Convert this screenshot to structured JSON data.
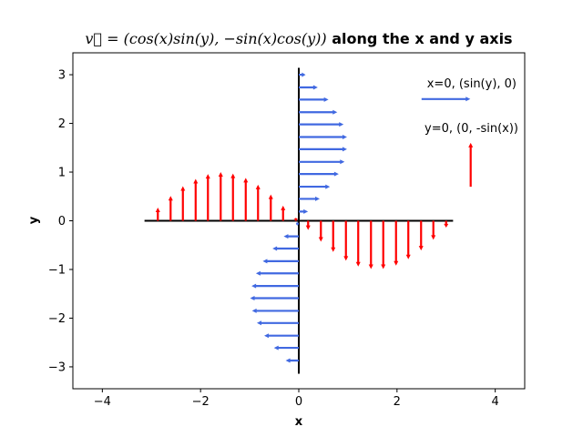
{
  "chart_data": {
    "type": "quiver",
    "title": {
      "math": "v⃗ = (cos(x)sin(y), −sin(x)cos(y))",
      "text": " along the x and y axis"
    },
    "xlabel": "x",
    "ylabel": "y",
    "xlim": [
      -4.6,
      4.6
    ],
    "ylim": [
      -3.45,
      3.45
    ],
    "xticks": [
      -4,
      -2,
      0,
      2,
      4
    ],
    "yticks": [
      -3,
      -2,
      -1,
      0,
      1,
      2,
      3
    ],
    "grid": false,
    "axis_lines": {
      "x": [
        -3.14159,
        3.14159
      ],
      "y": [
        -3.14159,
        3.14159
      ]
    },
    "series": [
      {
        "name": "x=0, (sin(y), 0)",
        "color": "#4169e1",
        "along": "y",
        "points": [
          {
            "y": -2.87,
            "u": -0.27
          },
          {
            "y": -2.61,
            "u": -0.51
          },
          {
            "y": -2.36,
            "u": -0.71
          },
          {
            "y": -2.1,
            "u": -0.86
          },
          {
            "y": -1.85,
            "u": -0.96
          },
          {
            "y": -1.59,
            "u": -1.0
          },
          {
            "y": -1.34,
            "u": -0.97
          },
          {
            "y": -1.08,
            "u": -0.88
          },
          {
            "y": -0.83,
            "u": -0.74
          },
          {
            "y": -0.57,
            "u": -0.54
          },
          {
            "y": -0.32,
            "u": -0.31
          },
          {
            "y": -0.06,
            "u": -0.06
          },
          {
            "y": 0.19,
            "u": 0.19
          },
          {
            "y": 0.45,
            "u": 0.43
          },
          {
            "y": 0.7,
            "u": 0.64
          },
          {
            "y": 0.96,
            "u": 0.82
          },
          {
            "y": 1.21,
            "u": 0.94
          },
          {
            "y": 1.47,
            "u": 0.99
          },
          {
            "y": 1.72,
            "u": 0.99
          },
          {
            "y": 1.98,
            "u": 0.92
          },
          {
            "y": 2.23,
            "u": 0.79
          },
          {
            "y": 2.49,
            "u": 0.61
          },
          {
            "y": 2.74,
            "u": 0.39
          },
          {
            "y": 3.0,
            "u": 0.14
          }
        ]
      },
      {
        "name": "y=0, (0, -sin(x))",
        "color": "#ff0000",
        "along": "x",
        "points": [
          {
            "x": -2.87,
            "v": 0.27
          },
          {
            "x": -2.61,
            "v": 0.51
          },
          {
            "x": -2.36,
            "v": 0.71
          },
          {
            "x": -2.1,
            "v": 0.86
          },
          {
            "x": -1.85,
            "v": 0.96
          },
          {
            "x": -1.59,
            "v": 1.0
          },
          {
            "x": -1.34,
            "v": 0.97
          },
          {
            "x": -1.08,
            "v": 0.88
          },
          {
            "x": -0.83,
            "v": 0.74
          },
          {
            "x": -0.57,
            "v": 0.54
          },
          {
            "x": -0.32,
            "v": 0.31
          },
          {
            "x": -0.06,
            "v": 0.06
          },
          {
            "x": 0.19,
            "v": -0.19
          },
          {
            "x": 0.45,
            "v": -0.43
          },
          {
            "x": 0.7,
            "v": -0.64
          },
          {
            "x": 0.96,
            "v": -0.82
          },
          {
            "x": 1.21,
            "v": -0.94
          },
          {
            "x": 1.47,
            "v": -0.99
          },
          {
            "x": 1.72,
            "v": -0.99
          },
          {
            "x": 1.98,
            "v": -0.92
          },
          {
            "x": 2.23,
            "v": -0.79
          },
          {
            "x": 2.49,
            "v": -0.61
          },
          {
            "x": 2.74,
            "v": -0.39
          },
          {
            "x": 3.0,
            "v": -0.14
          }
        ]
      }
    ],
    "legend": [
      {
        "label": "x=0, (sin(y), 0)",
        "color": "#4169e1",
        "sample": {
          "x": 2.5,
          "y": 2.5,
          "u": 1.0,
          "v": 0
        }
      },
      {
        "label": "y=0, (0, -sin(x))",
        "color": "#ff0000",
        "sample": {
          "x": 3.5,
          "y": 0.7,
          "u": 0,
          "v": 1.0
        }
      }
    ],
    "legend_placement": "top-right"
  }
}
